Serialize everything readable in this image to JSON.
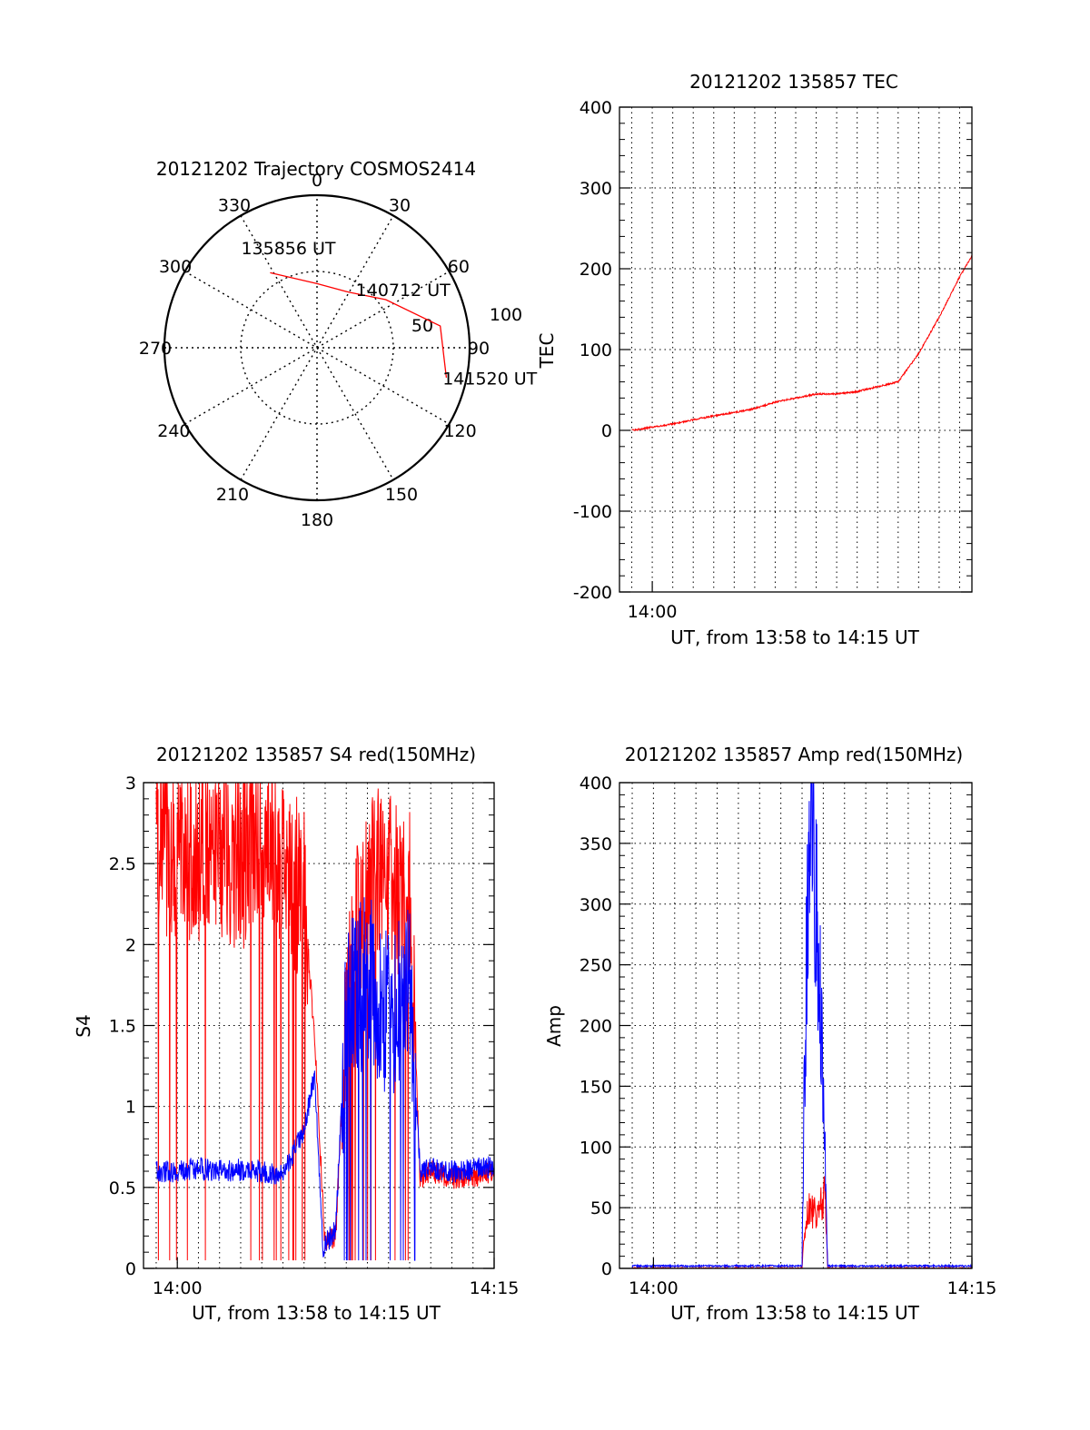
{
  "colors": {
    "red": "#ff0000",
    "blue": "#0000ff",
    "grid": "#000000",
    "background": "#ffffff"
  },
  "chart_data": [
    {
      "id": "trajectory",
      "type": "polar",
      "title": "20121202 Trajectory COSMOS2414",
      "azimuth_labels": [
        "0",
        "30",
        "60",
        "90",
        "120",
        "150",
        "180",
        "210",
        "240",
        "270",
        "300",
        "330"
      ],
      "elevation_labels": [
        "50",
        "100"
      ],
      "points": [
        {
          "azimuth": 328,
          "radius": 0.58
        },
        {
          "azimuth": 0,
          "radius": 0.42
        },
        {
          "azimuth": 30,
          "radius": 0.42
        },
        {
          "azimuth": 55,
          "radius": 0.55
        },
        {
          "azimuth": 80,
          "radius": 0.82
        },
        {
          "azimuth": 103,
          "radius": 0.87
        }
      ],
      "annotations": [
        {
          "text": "135856 UT",
          "azimuth": 344,
          "radius": 0.68
        },
        {
          "text": "140712 UT",
          "azimuth": 56,
          "radius": 0.68
        },
        {
          "text": "141520 UT",
          "azimuth": 100,
          "radius": 1.15
        }
      ]
    },
    {
      "id": "tec",
      "type": "line",
      "title": "20121202 135857 TEC",
      "xlabel": "UT, from 13:58 to 14:15 UT",
      "ylabel": "TEC",
      "xlim": [
        -1.6,
        15.6
      ],
      "ylim": [
        -200,
        400
      ],
      "yticks": [
        -200,
        -100,
        0,
        100,
        200,
        300,
        400
      ],
      "xticks": [
        {
          "value": 0,
          "label": "14:00"
        }
      ],
      "series": [
        {
          "color": "red",
          "x": [
            -1.0,
            -0.5,
            0,
            1,
            2,
            3,
            4,
            5,
            6,
            7,
            8,
            9,
            10,
            11,
            12,
            13,
            14,
            15,
            15.6
          ],
          "y": [
            0,
            2,
            4,
            8,
            13,
            18,
            22,
            27,
            35,
            40,
            45,
            45,
            48,
            54,
            60,
            95,
            140,
            190,
            216
          ]
        }
      ]
    },
    {
      "id": "s4",
      "type": "line",
      "title": "20121202 135857 S4 red(150MHz)",
      "xlabel": "UT, from 13:58 to 14:15 UT",
      "ylabel": "S4",
      "xlim": [
        -1.6,
        15.0
      ],
      "ylim": [
        0,
        3
      ],
      "yticks": [
        0,
        0.5,
        1,
        1.5,
        2,
        2.5,
        3
      ],
      "xticks": [
        {
          "value": 0,
          "label": "14:00"
        },
        {
          "value": 15,
          "label": "14:15"
        }
      ],
      "series": [
        {
          "color": "red",
          "x": [
            -1.0,
            0,
            1,
            2,
            3,
            4,
            5,
            6,
            6.5,
            7,
            7.5,
            8,
            9,
            10,
            11,
            11.5,
            12,
            13,
            14,
            15
          ],
          "y": [
            2.6,
            2.55,
            2.5,
            2.6,
            2.5,
            2.6,
            2.5,
            2.3,
            1.4,
            0.15,
            0.2,
            1.6,
            2.5,
            2.4,
            2.3,
            0.55,
            0.6,
            0.56,
            0.57,
            0.6
          ]
        },
        {
          "color": "blue",
          "x": [
            -1.0,
            0,
            1,
            2,
            3,
            4,
            5,
            6,
            6.5,
            6.9,
            7.5,
            8,
            9,
            10,
            11,
            11.5,
            12,
            13,
            14,
            15
          ],
          "y": [
            0.6,
            0.6,
            0.62,
            0.6,
            0.61,
            0.6,
            0.58,
            0.85,
            1.2,
            0.12,
            0.25,
            1.6,
            1.8,
            1.6,
            1.7,
            0.6,
            0.62,
            0.6,
            0.61,
            0.63
          ]
        }
      ]
    },
    {
      "id": "amp",
      "type": "line",
      "title": "20121202 135857 Amp red(150MHz)",
      "xlabel": "UT, from 13:58 to 14:15 UT",
      "ylabel": "Amp",
      "xlim": [
        -1.6,
        15.0
      ],
      "ylim": [
        0,
        400
      ],
      "yticks": [
        0,
        50,
        100,
        150,
        200,
        250,
        300,
        350,
        400
      ],
      "xticks": [
        {
          "value": 0,
          "label": "14:00"
        },
        {
          "value": 15,
          "label": "14:15"
        }
      ],
      "series": [
        {
          "color": "red",
          "x": [
            -1.0,
            7.0,
            7.1,
            7.3,
            7.6,
            7.9,
            8.1,
            8.2,
            15.0
          ],
          "y": [
            0,
            0,
            30,
            50,
            45,
            55,
            60,
            0,
            0
          ]
        },
        {
          "color": "blue",
          "x": [
            -1.0,
            7.0,
            7.1,
            7.3,
            7.5,
            7.7,
            7.9,
            8.1,
            8.2,
            15.0
          ],
          "y": [
            2,
            2,
            150,
            330,
            370,
            290,
            200,
            90,
            2,
            2
          ]
        }
      ]
    }
  ]
}
